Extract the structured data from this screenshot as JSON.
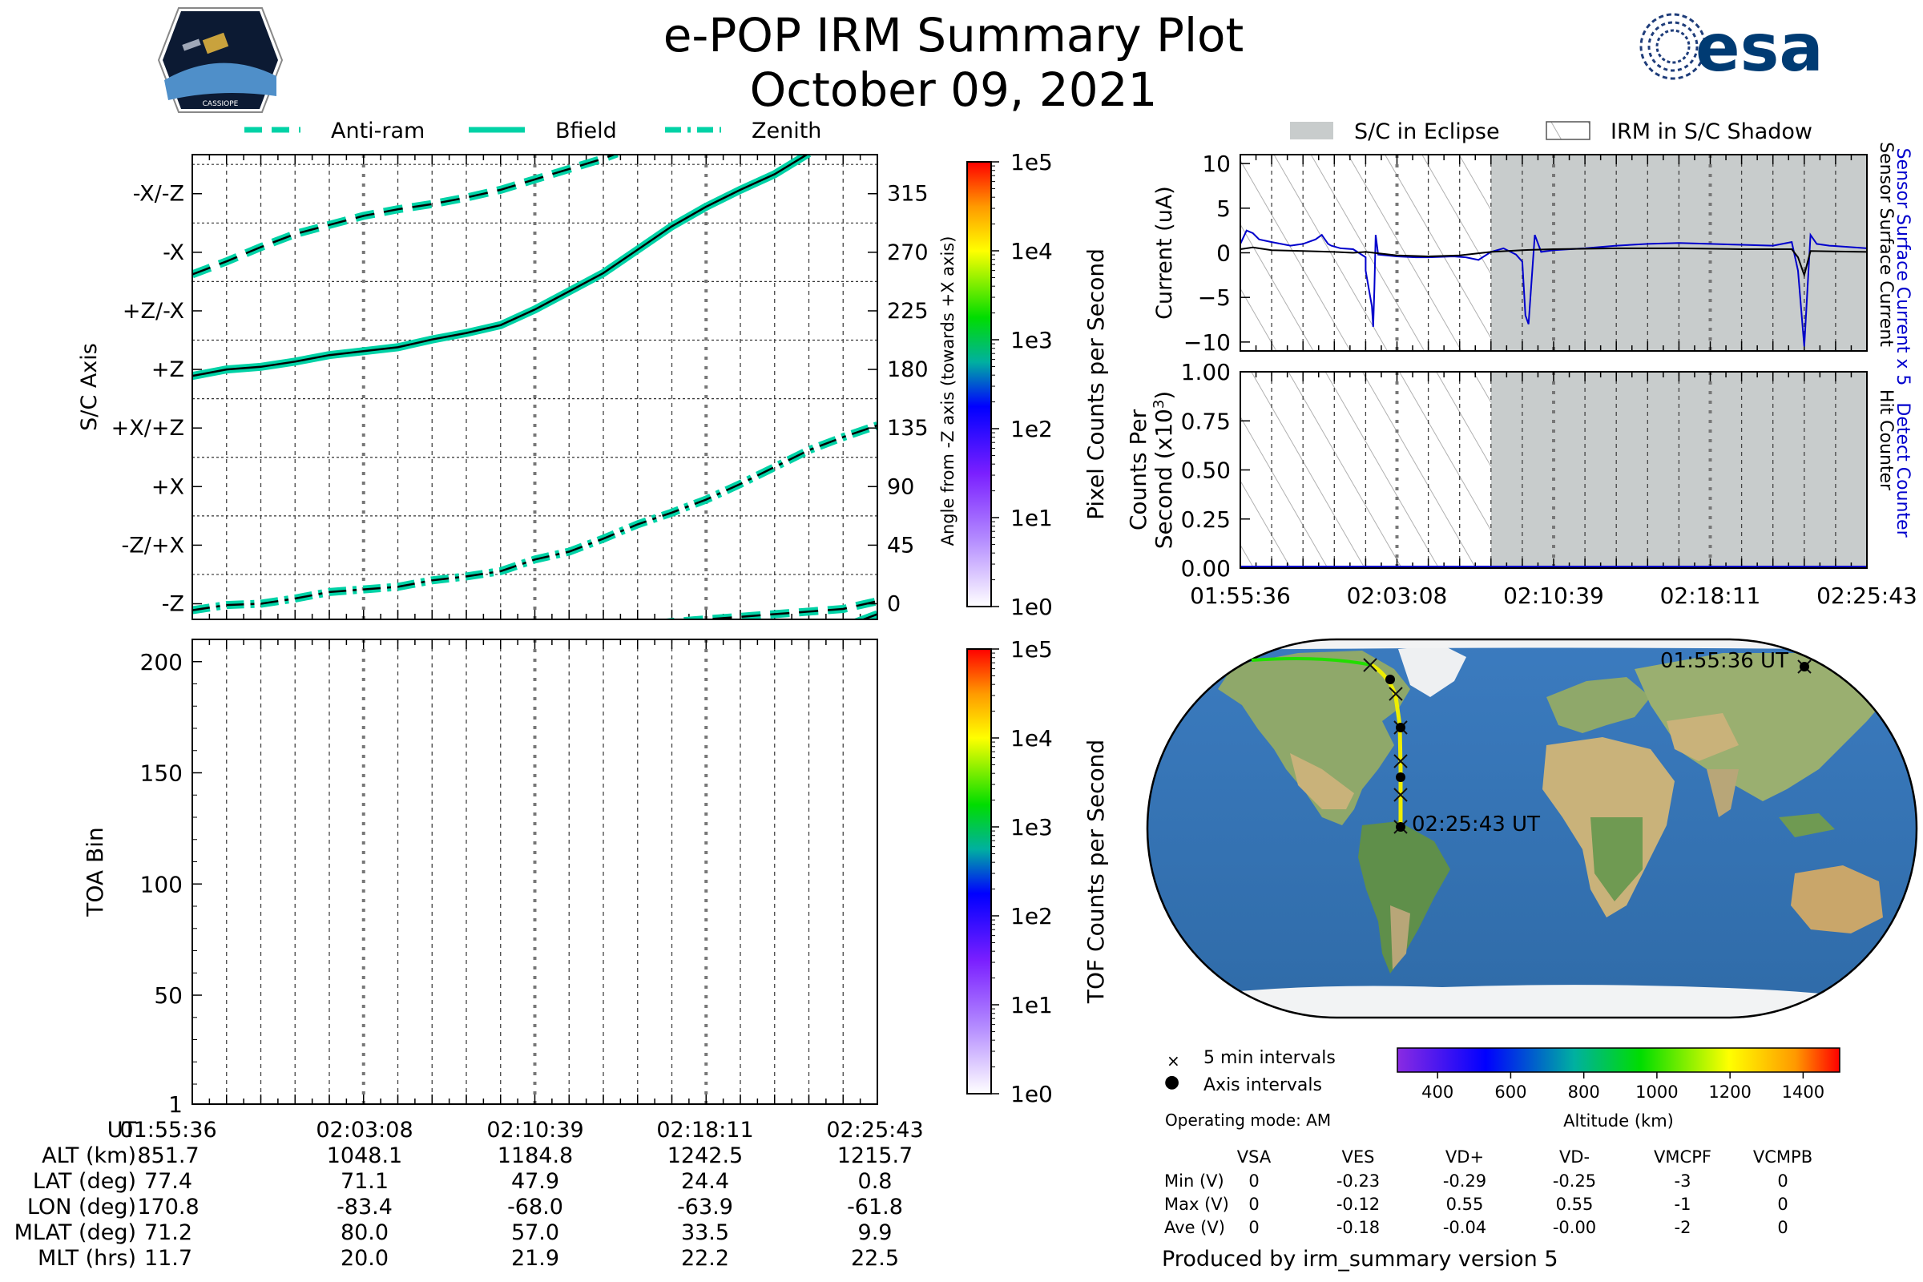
{
  "header": {
    "title": "e-POP IRM Summary Plot",
    "date": "October 09, 2021",
    "logo_left_text": "CASSIOPE",
    "logo_right_text": "esa"
  },
  "legend_top_left": [
    {
      "label": "Anti-ram",
      "style": "dashed"
    },
    {
      "label": "Bfield",
      "style": "solid"
    },
    {
      "label": "Zenith",
      "style": "dashdot"
    }
  ],
  "legend_top_right": [
    {
      "label": "S/C in Eclipse",
      "style": "gray-fill"
    },
    {
      "label": "IRM in S/C Shadow",
      "style": "hatch"
    }
  ],
  "colors": {
    "trace": "#00d2a6",
    "eclipse": "#c8cccc",
    "sensor_blue": "#0000cc"
  },
  "chart_data": [
    {
      "id": "sc-axis",
      "type": "line",
      "ylabel": "S/C Axis",
      "ylabel_right": "Angle from -Z axis (towards +X axis)",
      "ylim": [
        -12,
        345
      ],
      "y_ticks_left": [
        {
          "v": 0,
          "label": "-Z"
        },
        {
          "v": 45,
          "label": "-Z/+X"
        },
        {
          "v": 90,
          "label": "+X"
        },
        {
          "v": 135,
          "label": "+X/+Z"
        },
        {
          "v": 180,
          "label": "+Z"
        },
        {
          "v": 225,
          "label": "+Z/-X"
        },
        {
          "v": 270,
          "label": "-X"
        },
        {
          "v": 315,
          "label": "-X/-Z"
        }
      ],
      "y_ticks_right": [
        "0",
        "45",
        "90",
        "135",
        "180",
        "225",
        "270",
        "315"
      ],
      "colorbar": {
        "label": "Pixel Counts per Second",
        "ticks": [
          "1e0",
          "1e1",
          "1e2",
          "1e3",
          "1e4",
          "1e5"
        ]
      },
      "series": [
        {
          "name": "Bfield",
          "x": [
            0,
            0.05,
            0.1,
            0.15,
            0.2,
            0.25,
            0.3,
            0.35,
            0.4,
            0.45,
            0.5,
            0.55,
            0.6,
            0.65,
            0.7,
            0.75,
            0.8,
            0.85,
            0.9
          ],
          "y": [
            175,
            180,
            182,
            186,
            191,
            194,
            197,
            203,
            208,
            214,
            226,
            240,
            254,
            272,
            290,
            305,
            318,
            330,
            346
          ]
        },
        {
          "name": "Bfield",
          "x": [
            0.87,
            0.92,
            0.96,
            1.0
          ],
          "y": [
            -22,
            -20,
            -16,
            -8
          ]
        },
        {
          "name": "Anti-ram",
          "x": [
            0,
            0.05,
            0.1,
            0.15,
            0.2,
            0.25,
            0.3,
            0.35,
            0.4,
            0.45,
            0.5,
            0.55,
            0.6,
            0.62
          ],
          "y": [
            253,
            263,
            274,
            284,
            291,
            298,
            303,
            307,
            312,
            318,
            326,
            334,
            342,
            346
          ]
        },
        {
          "name": "Anti-ram",
          "x": [
            0.55,
            0.6,
            0.65,
            0.7,
            0.75,
            0.8,
            0.85,
            0.9,
            0.95,
            1.0
          ],
          "y": [
            -22,
            -20,
            -17,
            -14,
            -12,
            -10,
            -8,
            -6,
            -4,
            2
          ]
        },
        {
          "name": "Zenith",
          "x": [
            0,
            0.05,
            0.1,
            0.15,
            0.2,
            0.25,
            0.3,
            0.35,
            0.4,
            0.45,
            0.5,
            0.55,
            0.6,
            0.65,
            0.7,
            0.75,
            0.8,
            0.85,
            0.9,
            0.95,
            1.0
          ],
          "y": [
            -5,
            -1,
            0,
            4,
            9,
            11,
            13,
            18,
            21,
            25,
            34,
            40,
            50,
            61,
            70,
            80,
            92,
            105,
            118,
            128,
            137
          ]
        }
      ]
    },
    {
      "id": "toa",
      "type": "heatmap",
      "ylabel": "TOA Bin",
      "ylim": [
        1,
        210
      ],
      "y_ticks": [
        1,
        50,
        100,
        150,
        200
      ],
      "colorbar": {
        "label": "TOF Counts per Second",
        "ticks": [
          "1e0",
          "1e1",
          "1e2",
          "1e3",
          "1e4",
          "1e5"
        ]
      }
    },
    {
      "id": "current",
      "type": "line",
      "ylabel": "Current (uA)",
      "ylabel_right": [
        "Sensor Surface Current x 5",
        "Sensor Surface Current"
      ],
      "ylim": [
        -11,
        11
      ],
      "y_ticks": [
        10,
        5,
        0,
        -5,
        -10
      ],
      "shadow_until": 0.4,
      "series": [
        {
          "name": "Sensor Surface Current x 5",
          "color": "blue",
          "x": [
            0,
            0.01,
            0.02,
            0.03,
            0.05,
            0.08,
            0.1,
            0.12,
            0.13,
            0.135,
            0.14,
            0.145,
            0.16,
            0.18,
            0.2,
            0.2,
            0.21,
            0.212,
            0.214,
            0.216,
            0.22,
            0.25,
            0.28,
            0.3,
            0.34,
            0.36,
            0.38,
            0.4,
            0.42,
            0.44,
            0.45,
            0.455,
            0.46,
            0.47,
            0.48,
            0.5,
            0.55,
            0.6,
            0.65,
            0.7,
            0.75,
            0.8,
            0.85,
            0.88,
            0.89,
            0.9,
            0.91,
            0.92,
            0.94,
            1.0
          ],
          "y": [
            1,
            2.5,
            2.2,
            1.5,
            1.2,
            0.8,
            1,
            1.5,
            2,
            1.5,
            1,
            0.8,
            0.5,
            0.4,
            -0.5,
            -2,
            -6,
            -8.3,
            -4,
            2,
            -0.2,
            -0.4,
            -0.5,
            -0.5,
            -0.4,
            -0.5,
            -0.8,
            0.1,
            0.5,
            -0.2,
            -1,
            -7,
            -8,
            2,
            0.1,
            0.3,
            0.5,
            0.8,
            1,
            1.1,
            1,
            0.9,
            0.8,
            1.2,
            -2,
            -10.5,
            2,
            1,
            0.8,
            0.5
          ]
        },
        {
          "name": "Sensor Surface Current",
          "color": "black",
          "x": [
            0,
            0.02,
            0.05,
            0.1,
            0.15,
            0.18,
            0.2,
            0.25,
            0.3,
            0.35,
            0.4,
            0.45,
            0.5,
            0.6,
            0.7,
            0.8,
            0.88,
            0.89,
            0.9,
            0.91,
            1.0
          ],
          "y": [
            0.4,
            0.6,
            0.3,
            0.2,
            0.1,
            0,
            0.1,
            -0.3,
            -0.4,
            -0.3,
            0.1,
            0.3,
            0.4,
            0.5,
            0.5,
            0.4,
            0.4,
            -0.5,
            -2.5,
            0.2,
            0.1
          ]
        }
      ]
    },
    {
      "id": "counts",
      "type": "line",
      "ylabel": [
        "Counts Per",
        "Second (x10",
        "3",
        ")"
      ],
      "ylabel_right": [
        "Detect Counter",
        "Hit Counter"
      ],
      "ylim": [
        0,
        1
      ],
      "y_ticks": [
        "1.00",
        "0.75",
        "0.50",
        "0.25",
        "0.00"
      ],
      "x_ticks": [
        "01:55:36",
        "02:03:08",
        "02:10:39",
        "02:18:11",
        "02:25:43"
      ],
      "shadow_until": 0.4
    },
    {
      "id": "colorbar-altitude",
      "type": "heatmap",
      "xlabel": "Altitude (km)",
      "ticks": [
        400,
        600,
        800,
        1000,
        1200,
        1400
      ]
    }
  ],
  "map": {
    "start_label": "01:55:36 UT",
    "end_label": "02:25:43 UT"
  },
  "legend_bottom_right": {
    "five_min": "5 min intervals",
    "axis": "Axis intervals",
    "mode": "Operating mode: AM"
  },
  "voltage_table": {
    "headers": [
      "VSA",
      "VES",
      "VD+",
      "VD-",
      "VMCPF",
      "VCMPB"
    ],
    "rows": [
      {
        "label": "Min (V)",
        "values": [
          "0",
          "-0.23",
          "-0.29",
          "-0.25",
          "-3",
          "0"
        ]
      },
      {
        "label": "Max (V)",
        "values": [
          "0",
          "-0.12",
          "0.55",
          "0.55",
          "-1",
          "0"
        ]
      },
      {
        "label": "Ave (V)",
        "values": [
          "0",
          "-0.18",
          "-0.04",
          "-0.00",
          "-2",
          "0"
        ]
      }
    ]
  },
  "footer": {
    "produced_by": "Produced by irm_summary version 5"
  },
  "ephemeris": {
    "rows": [
      {
        "label": "UT",
        "values": [
          "01:55:36",
          "02:03:08",
          "02:10:39",
          "02:18:11",
          "02:25:43"
        ]
      },
      {
        "label": "ALT (km)",
        "values": [
          "851.7",
          "1048.1",
          "1184.8",
          "1242.5",
          "1215.7"
        ]
      },
      {
        "label": "LAT (deg)",
        "values": [
          "77.4",
          "71.1",
          "47.9",
          "24.4",
          "0.8"
        ]
      },
      {
        "label": "LON (deg)",
        "values": [
          "170.8",
          "-83.4",
          "-68.0",
          "-63.9",
          "-61.8"
        ]
      },
      {
        "label": "MLAT (deg)",
        "values": [
          "71.2",
          "80.0",
          "57.0",
          "33.5",
          "9.9"
        ]
      },
      {
        "label": "MLT (hrs)",
        "values": [
          "11.7",
          "20.0",
          "21.9",
          "22.2",
          "22.5"
        ]
      }
    ]
  }
}
